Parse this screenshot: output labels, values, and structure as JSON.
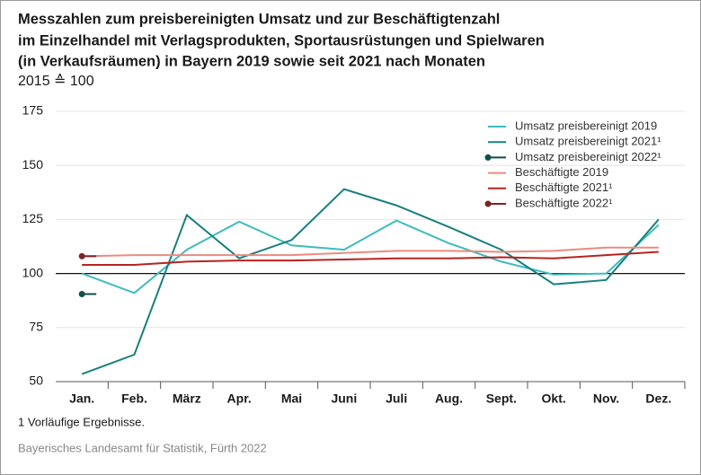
{
  "chart_data": {
    "type": "line",
    "title": [
      "Messzahlen zum preisbereinigten Umsatz und zur Beschäftigtenzahl",
      "im Einzelhandel mit Verlagsprodukten, Sportausrüstungen und Spielwaren",
      "(in Verkaufsräumen) in Bayern 2019 sowie seit 2021 nach Monaten"
    ],
    "subtitle": "2015 ≙ 100",
    "categories": [
      "Jan.",
      "Feb.",
      "März",
      "Apr.",
      "Mai",
      "Juni",
      "Juli",
      "Aug.",
      "Sept.",
      "Okt.",
      "Nov.",
      "Dez."
    ],
    "series": [
      {
        "name": "Umsatz preisbereinigt 2019",
        "color": "#3dbcbc",
        "values": [
          100,
          91,
          111,
          124,
          113,
          111,
          124.5,
          114,
          105.5,
          99.5,
          100,
          122.5
        ]
      },
      {
        "name": "Umsatz preisbereinigt 2021¹",
        "color": "#17807e",
        "values": [
          53.5,
          62.5,
          127,
          107,
          115.5,
          139,
          131.5,
          121.5,
          111,
          95,
          97,
          125
        ]
      },
      {
        "name": "Umsatz preisbereinigt 2022¹",
        "color": "#0f4f4d",
        "marker": true,
        "values": [
          90.5,
          null,
          null,
          null,
          null,
          null,
          null,
          null,
          null,
          null,
          null,
          null
        ]
      },
      {
        "name": "Beschäftigte 2019",
        "color": "#ec8a80",
        "values": [
          108,
          108.5,
          108.5,
          108.5,
          108.5,
          109.5,
          110.5,
          110.5,
          110,
          110.5,
          112,
          112
        ]
      },
      {
        "name": "Beschäftigte 2021¹",
        "color": "#b8231f",
        "values": [
          104,
          104,
          105.5,
          106,
          106,
          106.5,
          107,
          107,
          107.5,
          107,
          108.5,
          110
        ]
      },
      {
        "name": "Beschäftigte 2022¹",
        "color": "#7a2424",
        "marker": true,
        "values": [
          108,
          null,
          null,
          null,
          null,
          null,
          null,
          null,
          null,
          null,
          null,
          null
        ]
      }
    ],
    "ylim": [
      50,
      175
    ],
    "yticks": [
      50,
      75,
      100,
      125,
      150,
      175
    ],
    "reference_line": 100,
    "footnote": "1  Vorläufige Ergebnisse.",
    "source": "Bayerisches Landesamt für Statistik, Fürth 2022"
  }
}
